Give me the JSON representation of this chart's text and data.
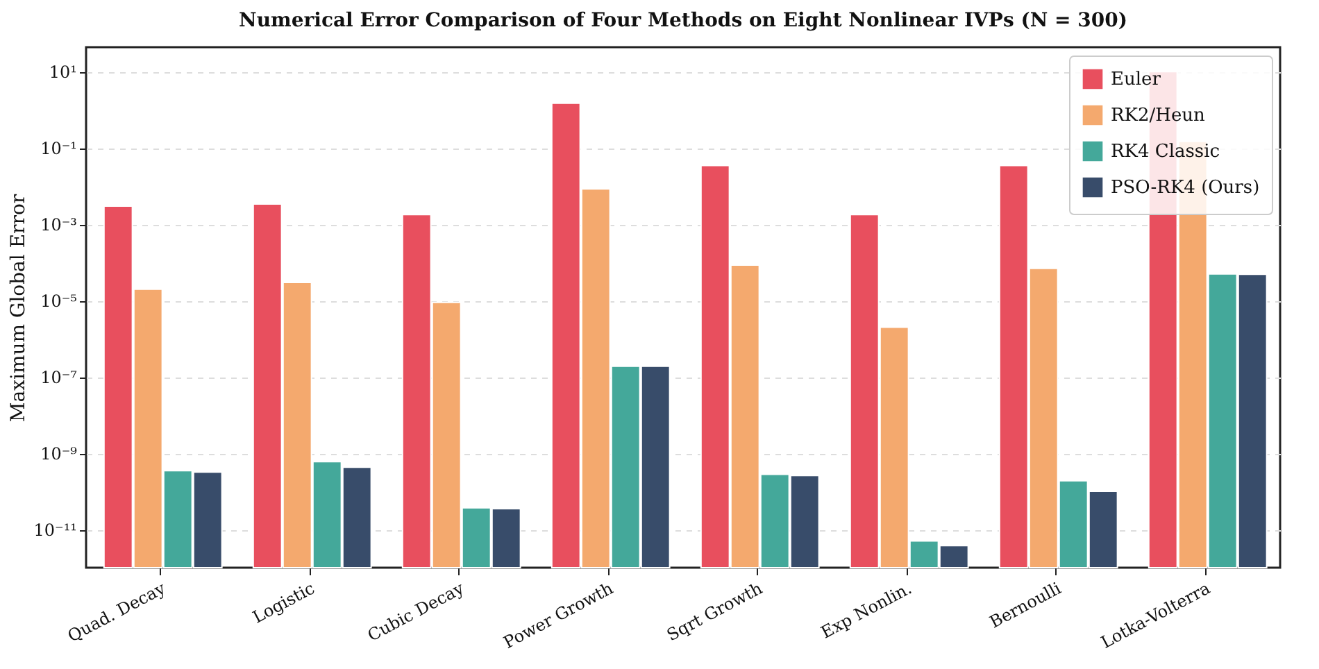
{
  "chart_data": {
    "type": "bar",
    "title": "Numerical Error Comparison of Four Methods on Eight Nonlinear IVPs  (N = 300)",
    "ylabel": "Maximum Global Error",
    "categories": [
      "Quad. Decay",
      "Logistic",
      "Cubic Decay",
      "Power Growth",
      "Sqrt Growth",
      "Exp Nonlin.",
      "Bernoulli",
      "Lotka-Volterra"
    ],
    "series": [
      {
        "name": "Euler",
        "color": "#e84f5e",
        "values": [
          0.003,
          0.0034,
          0.0018,
          1.5,
          0.035,
          0.0018,
          0.035,
          10
        ]
      },
      {
        "name": "RK2/Heun",
        "color": "#f4a96e",
        "values": [
          2e-05,
          3e-05,
          9e-06,
          0.0085,
          8.5e-05,
          2e-06,
          7e-05,
          0.15
        ]
      },
      {
        "name": "RK4 Classic",
        "color": "#44a89a",
        "values": [
          3.5e-10,
          6e-10,
          3.7e-11,
          1.9e-07,
          2.8e-10,
          5e-12,
          1.9e-10,
          5e-05
        ]
      },
      {
        "name": "PSO-RK4 (Ours)",
        "color": "#384c6a",
        "values": [
          3.2e-10,
          4.3e-10,
          3.5e-11,
          1.9e-07,
          2.6e-10,
          3.8e-12,
          1e-10,
          4.9e-05
        ]
      }
    ],
    "log": true,
    "ylim": [
      1e-12,
      44
    ],
    "yticks": [
      {
        "value": 1e-11,
        "label": "10⁻¹¹"
      },
      {
        "value": 1e-09,
        "label": "10⁻⁹"
      },
      {
        "value": 1e-07,
        "label": "10⁻⁷"
      },
      {
        "value": 1e-05,
        "label": "10⁻⁵"
      },
      {
        "value": 0.001,
        "label": "10⁻³"
      },
      {
        "value": 0.1,
        "label": "10⁻¹"
      },
      {
        "value": 10,
        "label": "10¹"
      }
    ],
    "grid": "y",
    "legend": "top right"
  }
}
